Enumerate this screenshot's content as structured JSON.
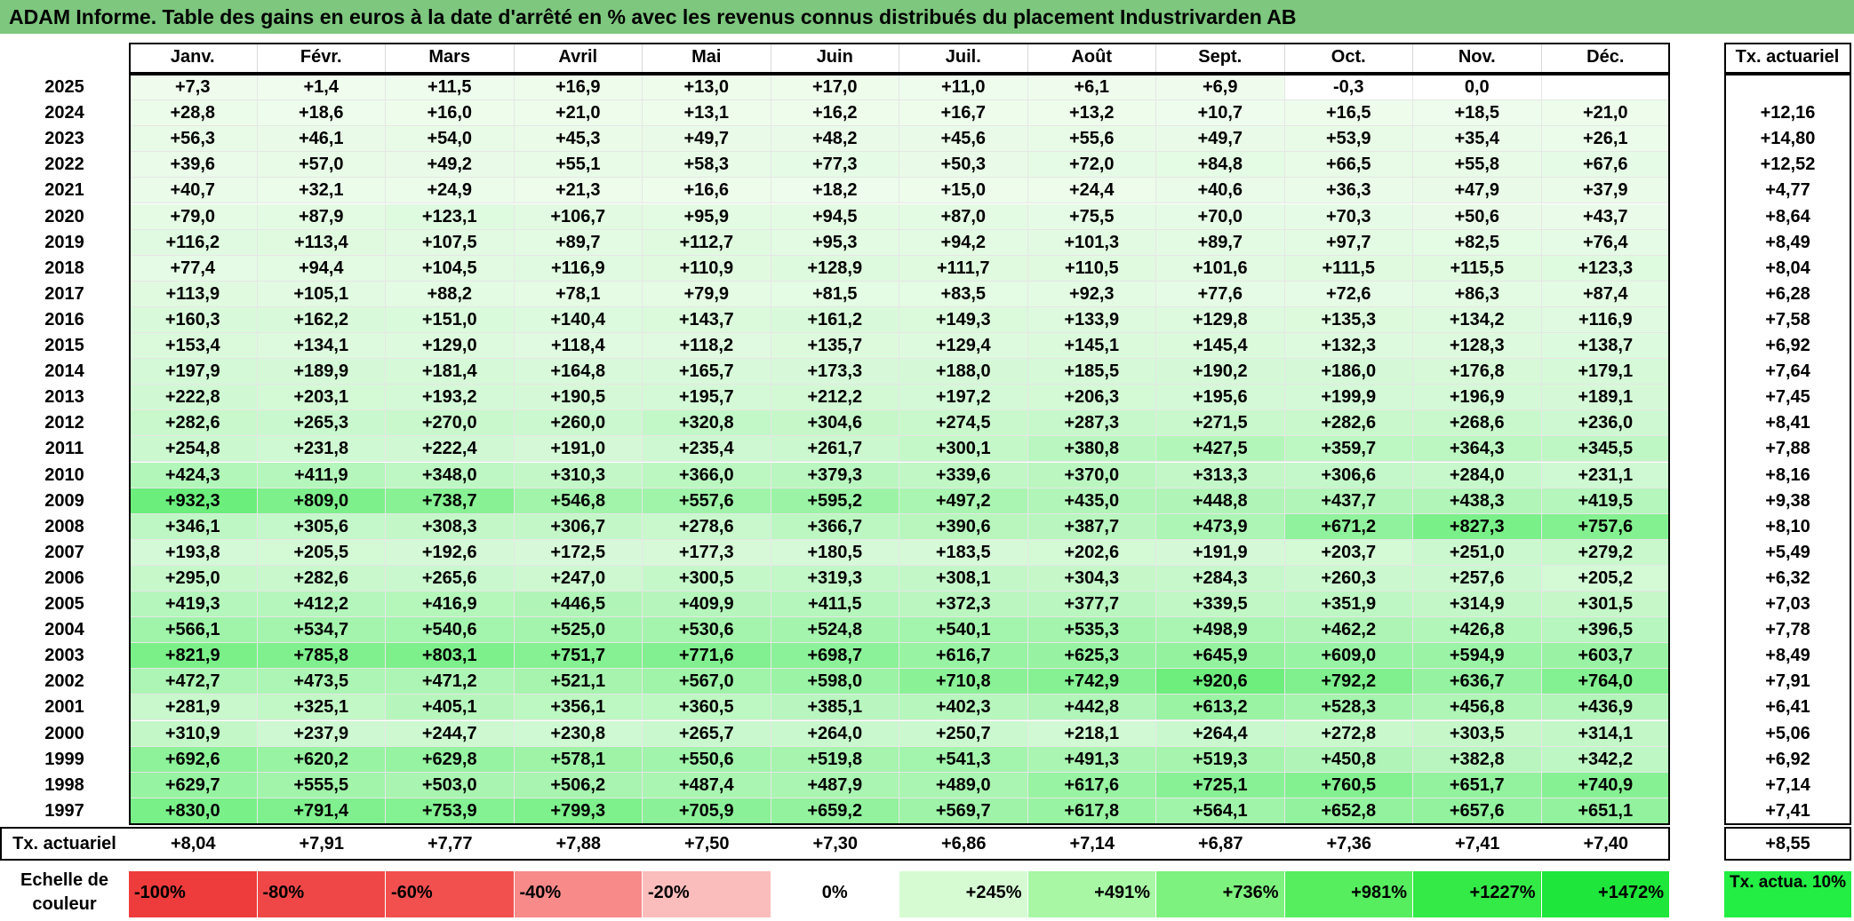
{
  "title": "ADAM Informe. Table des gains en euros à la date d'arrêté en % avec les revenus connus distribués du placement Industrivarden AB",
  "chart_data": {
    "type": "table",
    "columns": [
      "Janv.",
      "Févr.",
      "Mars",
      "Avril",
      "Mai",
      "Juin",
      "Juil.",
      "Août",
      "Sept.",
      "Oct.",
      "Nov.",
      "Déc."
    ],
    "rate_column_label": "Tx. actuariel",
    "rows": [
      {
        "year": "2025",
        "values": [
          "+7,3",
          "+1,4",
          "+11,5",
          "+16,9",
          "+13,0",
          "+17,0",
          "+11,0",
          "+6,1",
          "+6,9",
          "-0,3",
          "0,0",
          ""
        ],
        "rate": ""
      },
      {
        "year": "2024",
        "values": [
          "+28,8",
          "+18,6",
          "+16,0",
          "+21,0",
          "+13,1",
          "+16,2",
          "+16,7",
          "+13,2",
          "+10,7",
          "+16,5",
          "+18,5",
          "+21,0"
        ],
        "rate": "+12,16"
      },
      {
        "year": "2023",
        "values": [
          "+56,3",
          "+46,1",
          "+54,0",
          "+45,3",
          "+49,7",
          "+48,2",
          "+45,6",
          "+55,6",
          "+49,7",
          "+53,9",
          "+35,4",
          "+26,1"
        ],
        "rate": "+14,80"
      },
      {
        "year": "2022",
        "values": [
          "+39,6",
          "+57,0",
          "+49,2",
          "+55,1",
          "+58,3",
          "+77,3",
          "+50,3",
          "+72,0",
          "+84,8",
          "+66,5",
          "+55,8",
          "+67,6"
        ],
        "rate": "+12,52"
      },
      {
        "year": "2021",
        "values": [
          "+40,7",
          "+32,1",
          "+24,9",
          "+21,3",
          "+16,6",
          "+18,2",
          "+15,0",
          "+24,4",
          "+40,6",
          "+36,3",
          "+47,9",
          "+37,9"
        ],
        "rate": "+4,77"
      },
      {
        "year": "2020",
        "values": [
          "+79,0",
          "+87,9",
          "+123,1",
          "+106,7",
          "+95,9",
          "+94,5",
          "+87,0",
          "+75,5",
          "+70,0",
          "+70,3",
          "+50,6",
          "+43,7"
        ],
        "rate": "+8,64"
      },
      {
        "year": "2019",
        "values": [
          "+116,2",
          "+113,4",
          "+107,5",
          "+89,7",
          "+112,7",
          "+95,3",
          "+94,2",
          "+101,3",
          "+89,7",
          "+97,7",
          "+82,5",
          "+76,4"
        ],
        "rate": "+8,49"
      },
      {
        "year": "2018",
        "values": [
          "+77,4",
          "+94,4",
          "+104,5",
          "+116,9",
          "+110,9",
          "+128,9",
          "+111,7",
          "+110,5",
          "+101,6",
          "+111,5",
          "+115,5",
          "+123,3"
        ],
        "rate": "+8,04"
      },
      {
        "year": "2017",
        "values": [
          "+113,9",
          "+105,1",
          "+88,2",
          "+78,1",
          "+79,9",
          "+81,5",
          "+83,5",
          "+92,3",
          "+77,6",
          "+72,6",
          "+86,3",
          "+87,4"
        ],
        "rate": "+6,28"
      },
      {
        "year": "2016",
        "values": [
          "+160,3",
          "+162,2",
          "+151,0",
          "+140,4",
          "+143,7",
          "+161,2",
          "+149,3",
          "+133,9",
          "+129,8",
          "+135,3",
          "+134,2",
          "+116,9"
        ],
        "rate": "+7,58"
      },
      {
        "year": "2015",
        "values": [
          "+153,4",
          "+134,1",
          "+129,0",
          "+118,4",
          "+118,2",
          "+135,7",
          "+129,4",
          "+145,1",
          "+145,4",
          "+132,3",
          "+128,3",
          "+138,7"
        ],
        "rate": "+6,92"
      },
      {
        "year": "2014",
        "values": [
          "+197,9",
          "+189,9",
          "+181,4",
          "+164,8",
          "+165,7",
          "+173,3",
          "+188,0",
          "+185,5",
          "+190,2",
          "+186,0",
          "+176,8",
          "+179,1"
        ],
        "rate": "+7,64"
      },
      {
        "year": "2013",
        "values": [
          "+222,8",
          "+203,1",
          "+193,2",
          "+190,5",
          "+195,7",
          "+212,2",
          "+197,2",
          "+206,3",
          "+195,6",
          "+199,9",
          "+196,9",
          "+189,1"
        ],
        "rate": "+7,45"
      },
      {
        "year": "2012",
        "values": [
          "+282,6",
          "+265,3",
          "+270,0",
          "+260,0",
          "+320,8",
          "+304,6",
          "+274,5",
          "+287,3",
          "+271,5",
          "+282,6",
          "+268,6",
          "+236,0"
        ],
        "rate": "+8,41"
      },
      {
        "year": "2011",
        "values": [
          "+254,8",
          "+231,8",
          "+222,4",
          "+191,0",
          "+235,4",
          "+261,7",
          "+300,1",
          "+380,8",
          "+427,5",
          "+359,7",
          "+364,3",
          "+345,5"
        ],
        "rate": "+7,88"
      },
      {
        "year": "2010",
        "values": [
          "+424,3",
          "+411,9",
          "+348,0",
          "+310,3",
          "+366,0",
          "+379,3",
          "+339,6",
          "+370,0",
          "+313,3",
          "+306,6",
          "+284,0",
          "+231,1"
        ],
        "rate": "+8,16"
      },
      {
        "year": "2009",
        "values": [
          "+932,3",
          "+809,0",
          "+738,7",
          "+546,8",
          "+557,6",
          "+595,2",
          "+497,2",
          "+435,0",
          "+448,8",
          "+437,7",
          "+438,3",
          "+419,5"
        ],
        "rate": "+9,38"
      },
      {
        "year": "2008",
        "values": [
          "+346,1",
          "+305,6",
          "+308,3",
          "+306,7",
          "+278,6",
          "+366,7",
          "+390,6",
          "+387,7",
          "+473,9",
          "+671,2",
          "+827,3",
          "+757,6"
        ],
        "rate": "+8,10"
      },
      {
        "year": "2007",
        "values": [
          "+193,8",
          "+205,5",
          "+192,6",
          "+172,5",
          "+177,3",
          "+180,5",
          "+183,5",
          "+202,6",
          "+191,9",
          "+203,7",
          "+251,0",
          "+279,2"
        ],
        "rate": "+5,49"
      },
      {
        "year": "2006",
        "values": [
          "+295,0",
          "+282,6",
          "+265,6",
          "+247,0",
          "+300,5",
          "+319,3",
          "+308,1",
          "+304,3",
          "+284,3",
          "+260,3",
          "+257,6",
          "+205,2"
        ],
        "rate": "+6,32"
      },
      {
        "year": "2005",
        "values": [
          "+419,3",
          "+412,2",
          "+416,9",
          "+446,5",
          "+409,9",
          "+411,5",
          "+372,3",
          "+377,7",
          "+339,5",
          "+351,9",
          "+314,9",
          "+301,5"
        ],
        "rate": "+7,03"
      },
      {
        "year": "2004",
        "values": [
          "+566,1",
          "+534,7",
          "+540,6",
          "+525,0",
          "+530,6",
          "+524,8",
          "+540,1",
          "+535,3",
          "+498,9",
          "+462,2",
          "+426,8",
          "+396,5"
        ],
        "rate": "+7,78"
      },
      {
        "year": "2003",
        "values": [
          "+821,9",
          "+785,8",
          "+803,1",
          "+751,7",
          "+771,6",
          "+698,7",
          "+616,7",
          "+625,3",
          "+645,9",
          "+609,0",
          "+594,9",
          "+603,7"
        ],
        "rate": "+8,49"
      },
      {
        "year": "2002",
        "values": [
          "+472,7",
          "+473,5",
          "+471,2",
          "+521,1",
          "+567,0",
          "+598,0",
          "+710,8",
          "+742,9",
          "+920,6",
          "+792,2",
          "+636,7",
          "+764,0"
        ],
        "rate": "+7,91"
      },
      {
        "year": "2001",
        "values": [
          "+281,9",
          "+325,1",
          "+405,1",
          "+356,1",
          "+360,5",
          "+385,1",
          "+402,3",
          "+442,8",
          "+613,2",
          "+528,3",
          "+456,8",
          "+436,9"
        ],
        "rate": "+6,41"
      },
      {
        "year": "2000",
        "values": [
          "+310,9",
          "+237,9",
          "+244,7",
          "+230,8",
          "+265,7",
          "+264,0",
          "+250,7",
          "+218,1",
          "+264,4",
          "+272,8",
          "+303,5",
          "+314,1"
        ],
        "rate": "+5,06"
      },
      {
        "year": "1999",
        "values": [
          "+692,6",
          "+620,2",
          "+629,8",
          "+578,1",
          "+550,6",
          "+519,8",
          "+541,3",
          "+491,3",
          "+519,3",
          "+450,8",
          "+382,8",
          "+342,2"
        ],
        "rate": "+6,92"
      },
      {
        "year": "1998",
        "values": [
          "+629,7",
          "+555,5",
          "+503,0",
          "+506,2",
          "+487,4",
          "+487,9",
          "+489,0",
          "+617,6",
          "+725,1",
          "+760,5",
          "+651,7",
          "+740,9"
        ],
        "rate": "+7,14"
      },
      {
        "year": "1997",
        "values": [
          "+830,0",
          "+791,4",
          "+753,9",
          "+799,3",
          "+705,9",
          "+659,2",
          "+569,7",
          "+617,8",
          "+564,1",
          "+652,8",
          "+657,6",
          "+651,1"
        ],
        "rate": "+7,41"
      }
    ],
    "footer": {
      "label": "Tx. actuariel",
      "values": [
        "+8,04",
        "+7,91",
        "+7,77",
        "+7,88",
        "+7,50",
        "+7,30",
        "+6,86",
        "+7,14",
        "+6,87",
        "+7,36",
        "+7,41",
        "+7,40"
      ],
      "total": "+8,55"
    },
    "legend": {
      "title": "Echelle de couleur",
      "entries": [
        {
          "label": "-100%",
          "color": "#ee3b3b",
          "align": "left"
        },
        {
          "label": "-80%",
          "color": "#ef4747",
          "align": "left"
        },
        {
          "label": "-60%",
          "color": "#f24f4f",
          "align": "left"
        },
        {
          "label": "-40%",
          "color": "#f88a8a",
          "align": "left"
        },
        {
          "label": "-20%",
          "color": "#fbbcbc",
          "align": "left"
        },
        {
          "label": "0%",
          "color": "#ffffff",
          "align": "center"
        },
        {
          "label": "+245%",
          "color": "#d6fbd3",
          "align": "right"
        },
        {
          "label": "+491%",
          "color": "#a7f7a5",
          "align": "right"
        },
        {
          "label": "+736%",
          "color": "#7ef27e",
          "align": "right"
        },
        {
          "label": "+981%",
          "color": "#56ee5f",
          "align": "right"
        },
        {
          "label": "+1227%",
          "color": "#33ea47",
          "align": "right"
        },
        {
          "label": "+1472%",
          "color": "#1ee63a",
          "align": "right"
        }
      ],
      "end_label": "Tx. actua. 10%",
      "end_color": "#22ee44"
    },
    "title_bar_color": "#7dc77e"
  }
}
